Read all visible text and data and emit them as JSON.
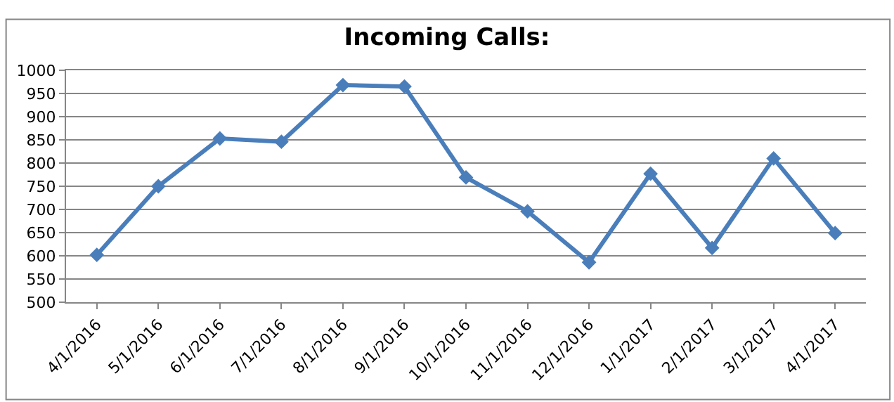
{
  "chart_data": {
    "type": "line",
    "title": "Incoming Calls:",
    "categories": [
      "4/1/2016",
      "5/1/2016",
      "6/1/2016",
      "7/1/2016",
      "8/1/2016",
      "9/1/2016",
      "10/1/2016",
      "11/1/2016",
      "12/1/2016",
      "1/1/2017",
      "2/1/2017",
      "3/1/2017",
      "4/1/2017"
    ],
    "series": [
      {
        "color": "#4a7ebb",
        "values": [
          602,
          750,
          853,
          846,
          968,
          965,
          769,
          696,
          586,
          777,
          617,
          810,
          649
        ]
      }
    ],
    "ylim": [
      500,
      1000
    ],
    "yticks": [
      500,
      550,
      600,
      650,
      700,
      750,
      800,
      850,
      900,
      950,
      1000
    ],
    "grid": "y",
    "marker": "diamond",
    "line_style": "solid"
  }
}
